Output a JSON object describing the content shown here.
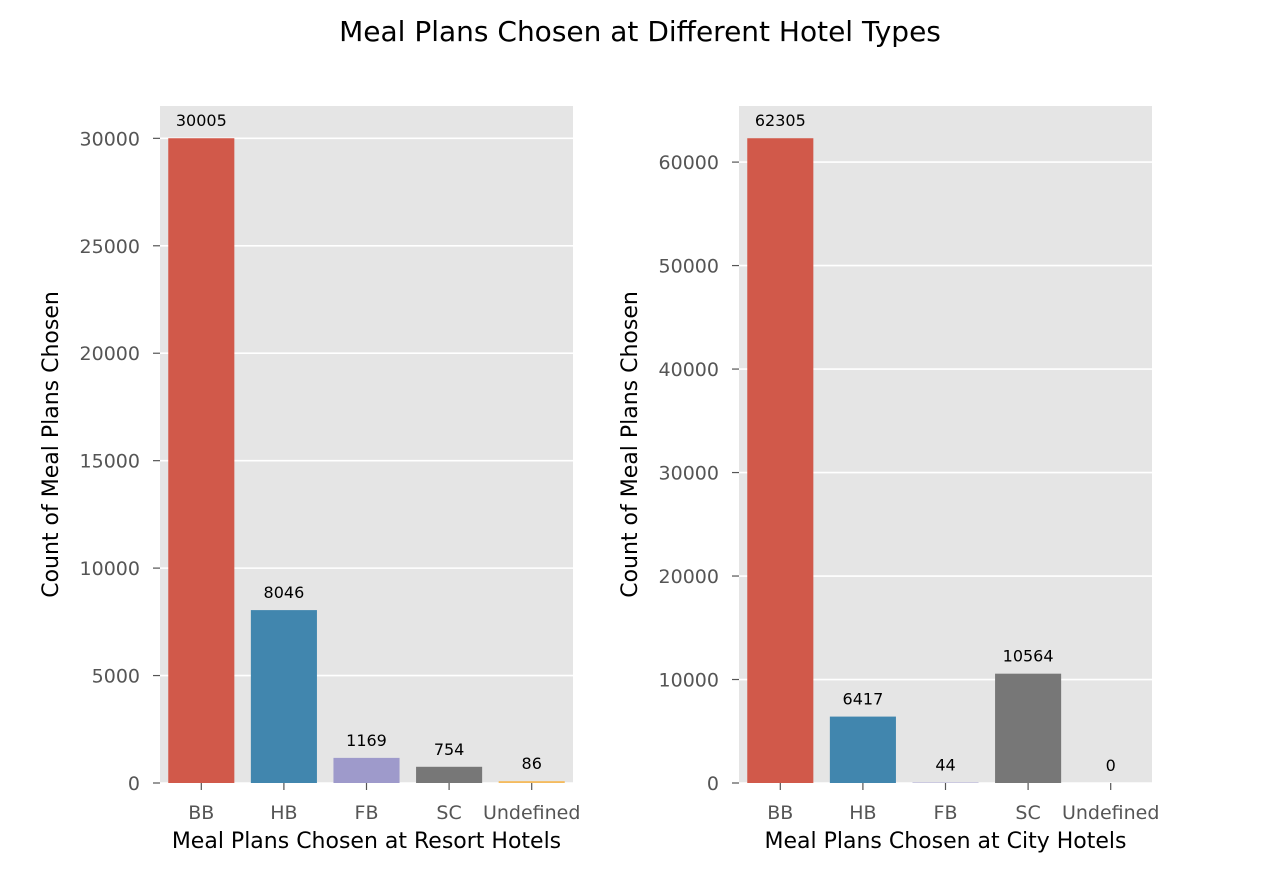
{
  "figure": {
    "title": "Meal Plans Chosen at Different Hotel Types"
  },
  "colors": {
    "panel_bg": "#e5e5e5",
    "grid": "#ffffff",
    "bars": [
      "#d1594a",
      "#4186ae",
      "#9e9acb",
      "#777777",
      "#f5bb5e"
    ]
  },
  "chart_data": [
    {
      "type": "bar",
      "categories": [
        "BB",
        "HB",
        "FB",
        "SC",
        "Undefined"
      ],
      "values": [
        30005,
        8046,
        1169,
        754,
        86
      ],
      "data_labels": [
        "30005",
        "8046",
        "1169",
        "754",
        "86"
      ],
      "xlabel": "Meal Plans Chosen at Resort Hotels",
      "ylabel": "Count of Meal Plans Chosen",
      "ylim": [
        0,
        31505
      ],
      "yticks": [
        0,
        5000,
        10000,
        15000,
        20000,
        25000,
        30000
      ],
      "grid": true
    },
    {
      "type": "bar",
      "categories": [
        "BB",
        "HB",
        "FB",
        "SC",
        "Undefined"
      ],
      "values": [
        62305,
        6417,
        44,
        10564,
        0
      ],
      "data_labels": [
        "62305",
        "6417",
        "44",
        "10564",
        "0"
      ],
      "xlabel": "Meal Plans Chosen at City Hotels",
      "ylabel": "Count of Meal Plans Chosen",
      "ylim": [
        0,
        65420
      ],
      "yticks": [
        0,
        10000,
        20000,
        30000,
        40000,
        50000,
        60000
      ],
      "grid": true
    }
  ]
}
